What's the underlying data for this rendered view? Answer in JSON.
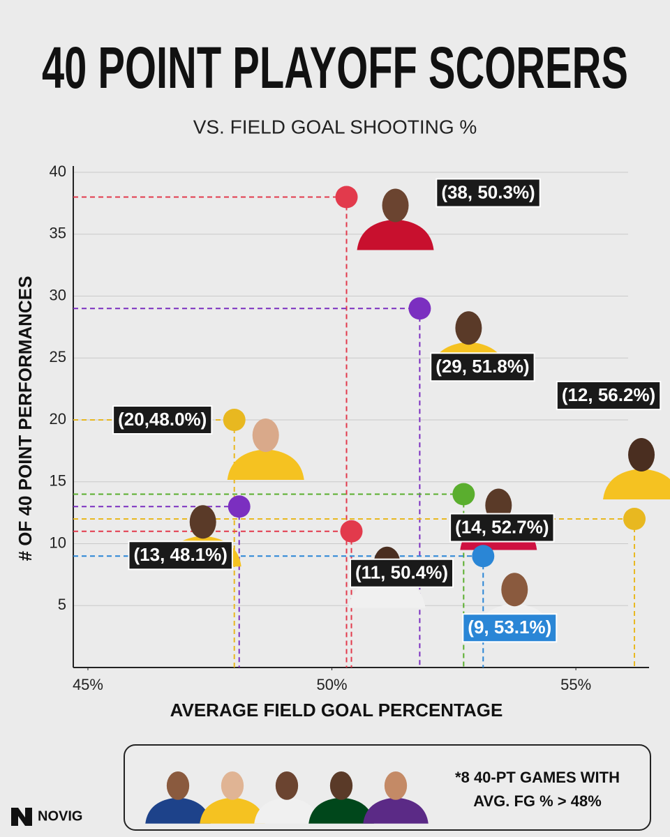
{
  "chart_data": {
    "type": "scatter",
    "title": "40 POINT PLAYOFF SCORERS",
    "subtitle": "VS. FIELD GOAL SHOOTING %",
    "x_label": "AVERAGE FIELD GOAL PERCENTAGE",
    "y_label": "# OF 40 POINT PERFORMANCES",
    "x": [
      50.3,
      51.8,
      48.0,
      48.1,
      50.4,
      52.7,
      56.2,
      53.1
    ],
    "values": [
      38,
      29,
      20,
      13,
      11,
      14,
      12,
      9
    ],
    "value_labels": [
      "(38, 50.3%)",
      "(29, 51.8%)",
      "(20,48.0%)",
      "(13, 48.1%)",
      "(11, 50.4%)",
      "(14, 52.7%)",
      "(12, 56.2%)",
      "(9, 53.1%)"
    ],
    "colors": [
      "#e23a4c",
      "#7b2fc0",
      "#e8b820",
      "#7b2fc0",
      "#e23a4c",
      "#5aae2e",
      "#e8b820",
      "#2a86d6"
    ],
    "label_colors": [
      "#1a1a1a",
      "#1a1a1a",
      "#1a1a1a",
      "#1a1a1a",
      "#1a1a1a",
      "#1a1a1a",
      "#1a1a1a",
      "#2a86d6"
    ],
    "xlim": [
      44.7,
      56.5
    ],
    "ylim": [
      0,
      40
    ],
    "xticks": [
      {
        "value": 45,
        "label": "45%"
      },
      {
        "value": 50,
        "label": "50%"
      },
      {
        "value": 55,
        "label": "55%"
      }
    ],
    "yticks": [
      5,
      10,
      15,
      20,
      25,
      30,
      35,
      40
    ],
    "grid": true,
    "footnote": [
      "*8 40-PT GAMES WITH",
      "AVG. FG % > 48%"
    ],
    "brand": "NOVIG"
  }
}
